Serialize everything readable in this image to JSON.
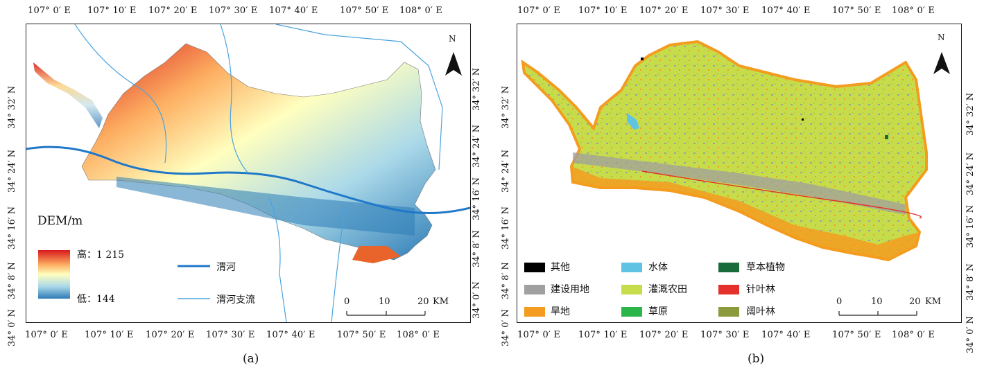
{
  "panel_a": {
    "caption": "(a)",
    "top_ticks": [
      "107° 0′ E",
      "107° 10′ E",
      "107° 20′ E",
      "107° 30′ E",
      "107° 40′ E",
      "107° 50′ E",
      "108° 0′ E"
    ],
    "bottom_ticks": [
      "107° 0′ E",
      "107° 10′ E",
      "107° 20′ E",
      "107° 30′ E",
      "107° 40′ E",
      "107° 50′ E",
      "108° 0′ E"
    ],
    "left_ticks": [
      "34° 0′ N",
      "34° 8′ N",
      "34° 16′ N",
      "34° 24′ N",
      "34° 32′ N"
    ],
    "right_ticks": [
      "34° 0′ N",
      "34° 8′ N",
      "34° 16′ N",
      "34° 24′ N",
      "34° 32′ N"
    ],
    "north_label": "N",
    "legend": {
      "title": "DEM/m",
      "high_label": "高：1 215",
      "low_label": "低：144",
      "gradient_colors": [
        "#d7191c",
        "#fdae61",
        "#ffffbf",
        "#abd9e9",
        "#2c7bb6"
      ],
      "river_label": "渭河",
      "tributary_label": "渭河支流",
      "river_color": "#1f78c8",
      "tributary_color": "#4aa3df"
    },
    "scale": {
      "labels": [
        "0",
        "10",
        "20"
      ],
      "unit": "KM"
    }
  },
  "panel_b": {
    "caption": "(b)",
    "top_ticks": [
      "107° 0′ E",
      "107° 10′ E",
      "107° 20′ E",
      "107° 30′ E",
      "107° 40′ E",
      "107° 50′ E",
      "108° 0′ E"
    ],
    "bottom_ticks": [
      "107° 0′ E",
      "107° 10′ E",
      "107° 20′ E",
      "107° 30′ E",
      "107° 40′ E",
      "107° 50′ E",
      "108° 0′ E"
    ],
    "left_ticks": [
      "34° 0′ N",
      "34° 8′ N",
      "34° 16′ N",
      "34° 24′ N",
      "34° 32′ N"
    ],
    "right_ticks": [
      "34° 0′ N",
      "34° 8′ N",
      "34° 16′ N",
      "34° 24′ N",
      "34° 32′ N"
    ],
    "north_label": "N",
    "legend": [
      {
        "label": "其他",
        "color": "#000000"
      },
      {
        "label": "水体",
        "color": "#5fc3e4"
      },
      {
        "label": "草本植物",
        "color": "#1a6b3c"
      },
      {
        "label": "建设用地",
        "color": "#a0a0a0"
      },
      {
        "label": "灌溉农田",
        "color": "#c6dc4a"
      },
      {
        "label": "针叶林",
        "color": "#e4312b"
      },
      {
        "label": "旱地",
        "color": "#f39c1f"
      },
      {
        "label": "草原",
        "color": "#2bb54b"
      },
      {
        "label": "阔叶林",
        "color": "#8a9a3c"
      }
    ],
    "scale": {
      "labels": [
        "0",
        "10",
        "20"
      ],
      "unit": "KM"
    }
  }
}
